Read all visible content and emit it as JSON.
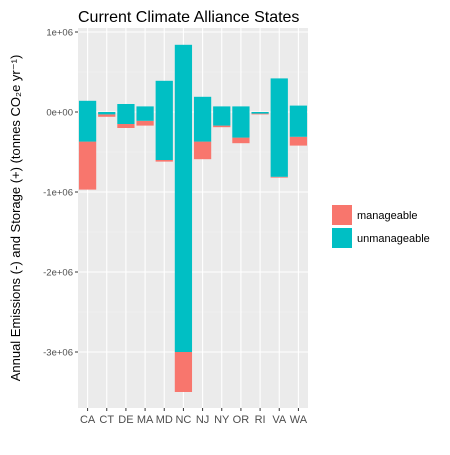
{
  "chart_data": {
    "type": "bar",
    "stacked": true,
    "title": "Current Climate Alliance States",
    "xlabel": "",
    "ylabel": "Annual Emissions (-) and Storage (+) (tonnes CO₂e yr⁻¹)",
    "categories": [
      "CA",
      "CT",
      "DE",
      "MA",
      "MD",
      "NC",
      "NJ",
      "NY",
      "OR",
      "RI",
      "VA",
      "WA"
    ],
    "ylim": [
      -3700000,
      1050000
    ],
    "yticks": [
      1000000,
      0,
      -1000000,
      -2000000,
      -3000000
    ],
    "ytick_labels": [
      "1e+06",
      "0e+00",
      "-1e+06",
      "-2e+06",
      "-3e+06"
    ],
    "grid": true,
    "legend_position": "right",
    "series": [
      {
        "name": "manageable",
        "color": "#F8766D",
        "segments": [
          [
            -370000,
            -970000
          ],
          [
            -30000,
            -60000
          ],
          [
            -150000,
            -200000
          ],
          [
            -110000,
            -170000
          ],
          [
            -600000,
            -620000
          ],
          [
            -3000000,
            -3500000
          ],
          [
            -370000,
            -590000
          ],
          [
            -170000,
            -190000
          ],
          [
            -320000,
            -390000
          ],
          [
            -20000,
            -30000
          ],
          [
            -810000,
            -820000
          ],
          [
            -310000,
            -420000
          ]
        ]
      },
      {
        "name": "unmanageable",
        "color": "#00BFC4",
        "segments": [
          [
            140000,
            -370000
          ],
          [
            0,
            -30000
          ],
          [
            100000,
            -150000
          ],
          [
            70000,
            -110000
          ],
          [
            390000,
            -600000
          ],
          [
            840000,
            -3000000
          ],
          [
            190000,
            -370000
          ],
          [
            70000,
            -170000
          ],
          [
            70000,
            -320000
          ],
          [
            0,
            -20000
          ],
          [
            420000,
            -810000
          ],
          [
            80000,
            -310000
          ]
        ]
      }
    ]
  }
}
